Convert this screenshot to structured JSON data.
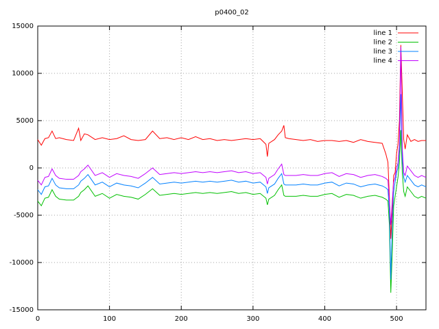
{
  "chart_data": {
    "type": "line",
    "title": "p0400_02",
    "x": [
      0,
      5,
      10,
      15,
      20,
      25,
      30,
      40,
      50,
      57,
      60,
      65,
      70,
      80,
      90,
      100,
      110,
      120,
      130,
      140,
      150,
      160,
      170,
      180,
      190,
      200,
      210,
      220,
      230,
      240,
      250,
      260,
      270,
      280,
      290,
      300,
      310,
      318,
      320,
      322,
      330,
      335,
      340,
      343,
      345,
      350,
      360,
      370,
      380,
      390,
      400,
      410,
      420,
      430,
      440,
      450,
      460,
      470,
      480,
      485,
      488,
      490,
      492,
      494,
      496,
      498,
      500,
      502,
      504,
      506,
      508,
      510,
      512,
      515,
      520,
      525,
      530,
      535,
      541
    ],
    "series": [
      {
        "name": "line 1",
        "color": "#ff0000",
        "values": [
          3000,
          2400,
          3100,
          3200,
          3900,
          3100,
          3200,
          3000,
          2900,
          4200,
          2900,
          3600,
          3500,
          3000,
          3200,
          3000,
          3100,
          3400,
          3000,
          2900,
          3000,
          3900,
          3100,
          3200,
          3000,
          3200,
          3000,
          3300,
          3000,
          3100,
          2900,
          3000,
          2900,
          3000,
          3100,
          3000,
          3100,
          2500,
          1200,
          2600,
          3000,
          3500,
          3900,
          4500,
          3200,
          3100,
          3000,
          2900,
          3000,
          2800,
          2900,
          2900,
          2800,
          2900,
          2700,
          3000,
          2800,
          2700,
          2600,
          1500,
          600,
          -3000,
          -7500,
          -4500,
          -800,
          -500,
          1500,
          2500,
          5000,
          13000,
          8000,
          3000,
          2000,
          3500,
          2800,
          3000,
          2800,
          2900,
          2900
        ]
      },
      {
        "name": "line 2",
        "color": "#00c000",
        "values": [
          -3500,
          -4000,
          -3200,
          -3100,
          -2300,
          -3000,
          -3300,
          -3400,
          -3400,
          -3000,
          -2600,
          -2300,
          -1900,
          -3000,
          -2700,
          -3200,
          -2800,
          -3000,
          -3100,
          -3300,
          -2800,
          -2200,
          -2900,
          -2800,
          -2700,
          -2800,
          -2700,
          -2600,
          -2700,
          -2600,
          -2700,
          -2600,
          -2500,
          -2700,
          -2600,
          -2800,
          -2700,
          -3200,
          -3900,
          -3300,
          -2900,
          -2300,
          -1800,
          -2900,
          -3000,
          -3000,
          -3000,
          -2900,
          -3000,
          -3000,
          -2800,
          -2700,
          -3100,
          -2800,
          -2900,
          -3200,
          -3000,
          -2900,
          -3100,
          -3300,
          -3500,
          -6000,
          -13200,
          -9000,
          -4000,
          -3000,
          -2000,
          -1000,
          500,
          4000,
          -500,
          -2500,
          -3000,
          -2000,
          -2500,
          -3000,
          -3200,
          -3000,
          -3200
        ]
      },
      {
        "name": "line 3",
        "color": "#0080ff",
        "values": [
          -2300,
          -2800,
          -2000,
          -1900,
          -1100,
          -1800,
          -2100,
          -2200,
          -2200,
          -1800,
          -1400,
          -1100,
          -700,
          -1800,
          -1500,
          -2000,
          -1600,
          -1800,
          -1900,
          -2100,
          -1600,
          -1000,
          -1700,
          -1600,
          -1500,
          -1600,
          -1500,
          -1400,
          -1500,
          -1400,
          -1500,
          -1400,
          -1300,
          -1500,
          -1400,
          -1600,
          -1500,
          -2000,
          -2700,
          -2100,
          -1700,
          -1100,
          -600,
          -1700,
          -1800,
          -1800,
          -1800,
          -1700,
          -1800,
          -1800,
          -1600,
          -1500,
          -1900,
          -1600,
          -1700,
          -2000,
          -1800,
          -1700,
          -1900,
          -2100,
          -2300,
          -4500,
          -11800,
          -6000,
          -2500,
          -1500,
          -500,
          0,
          2000,
          7800,
          1000,
          -1000,
          -1500,
          -800,
          -1300,
          -1800,
          -2000,
          -1800,
          -2000
        ]
      },
      {
        "name": "line 4",
        "color": "#c000ff",
        "values": [
          -1300,
          -1800,
          -1000,
          -900,
          -100,
          -800,
          -1100,
          -1200,
          -1200,
          -800,
          -400,
          -100,
          300,
          -800,
          -500,
          -1000,
          -600,
          -800,
          -900,
          -1100,
          -600,
          0,
          -700,
          -600,
          -500,
          -600,
          -500,
          -400,
          -500,
          -400,
          -500,
          -400,
          -300,
          -500,
          -400,
          -600,
          -500,
          -1000,
          -1700,
          -1100,
          -700,
          -100,
          400,
          -700,
          -800,
          -800,
          -800,
          -700,
          -800,
          -800,
          -600,
          -500,
          -900,
          -600,
          -700,
          -1000,
          -800,
          -700,
          -900,
          -1100,
          -1300,
          -3500,
          -6000,
          -3500,
          -1500,
          -1000,
          0,
          500,
          2500,
          12800,
          2000,
          -500,
          -800,
          200,
          -300,
          -800,
          -1000,
          -800,
          -1000
        ]
      }
    ],
    "xlim": [
      0,
      541
    ],
    "xticks": [
      0,
      100,
      200,
      300,
      400,
      500
    ],
    "ylim": [
      -15000,
      15000
    ],
    "yticks": [
      -15000,
      -10000,
      -5000,
      0,
      5000,
      10000,
      15000
    ],
    "grid": true,
    "legend": "top-right"
  }
}
